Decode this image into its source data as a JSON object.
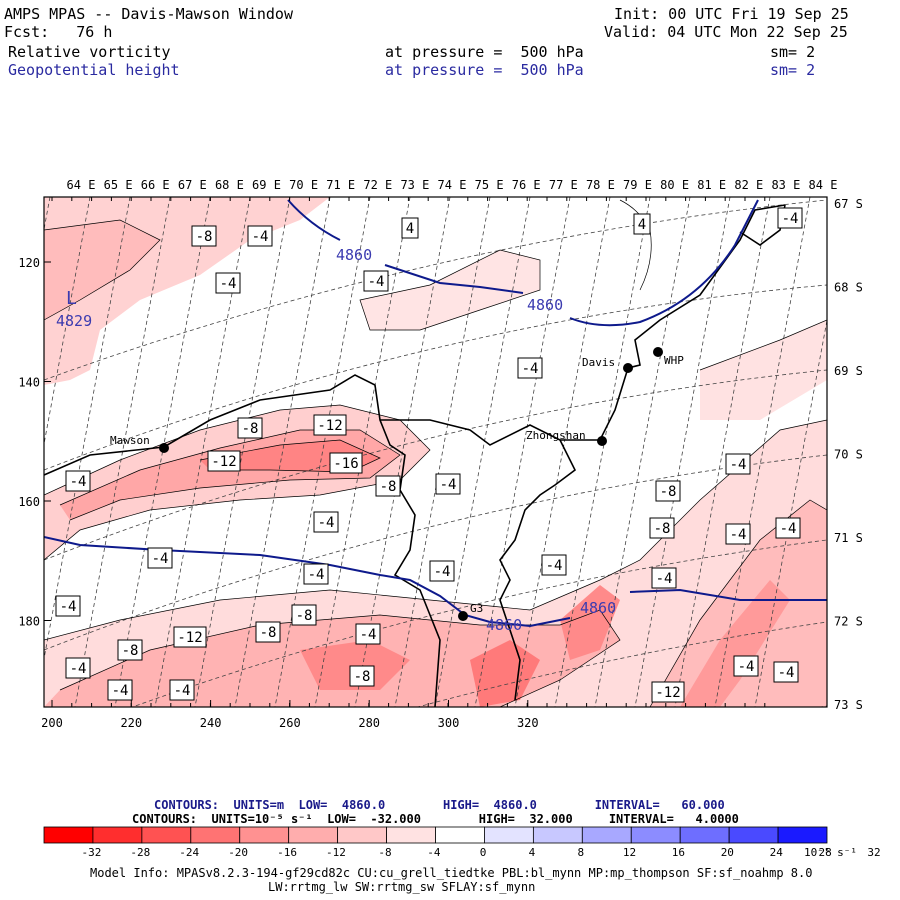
{
  "header": {
    "title": "AMPS MPAS -- Davis-Mawson Window",
    "init": "Init: 00 UTC Fri 19 Sep 25",
    "fcst": "Fcst:   76 h",
    "valid": "Valid: 04 UTC Mon 22 Sep 25",
    "field1": {
      "name": "Relative vorticity",
      "level": "at pressure =  500 hPa",
      "sm": "sm= 2"
    },
    "field2": {
      "name": "Geopotential height",
      "level": "at pressure =  500 hPa",
      "sm": "sm= 2"
    }
  },
  "axes": {
    "lon_labels": [
      "64 E",
      "65 E",
      "66 E",
      "67 E",
      "68 E",
      "69 E",
      "70 E",
      "71 E",
      "72 E",
      "73 E",
      "74 E",
      "75 E",
      "76 E",
      "77 E",
      "78 E",
      "79 E",
      "80 E",
      "81 E",
      "82 E",
      "83 E",
      "84 E"
    ],
    "lat_labels": [
      "67 S",
      "68 S",
      "69 S",
      "70 S",
      "71 S",
      "72 S",
      "73 S"
    ],
    "x_ticks": [
      "200",
      "220",
      "240",
      "260",
      "280",
      "300",
      "320"
    ],
    "y_ticks": [
      "120",
      "140",
      "160",
      "180"
    ]
  },
  "stations": [
    {
      "name": "Mawson"
    },
    {
      "name": "Davis"
    },
    {
      "name": "WHP"
    },
    {
      "name": "Zhongshan"
    },
    {
      "name": "G3"
    }
  ],
  "height_labels": [
    "4860",
    "4860",
    "4860",
    "4860",
    "4829"
  ],
  "low_marker": "L",
  "vort_labels": [
    "-8",
    "-4",
    "-4",
    "4",
    "4",
    "-4",
    "-4",
    "-4",
    "-8",
    "-12",
    "-12",
    "-16",
    "-8",
    "-4",
    "-4",
    "-4",
    "-4",
    "-4",
    "-4",
    "-4",
    "-4",
    "-4",
    "-8",
    "-4",
    "-4",
    "-8",
    "-12",
    "-8",
    "-4",
    "-8",
    "-4",
    "-4",
    "-4",
    "-4",
    "-8",
    "-8",
    "-4",
    "-4",
    "-12"
  ],
  "footer": {
    "contours1": "CONTOURS:  UNITS=m  LOW=  4860.0        HIGH=  4860.0        INTERVAL=   60.000",
    "contours2": "CONTOURS:  UNITS=10⁻⁵ s⁻¹  LOW=  -32.000        HIGH=  32.000     INTERVAL=   4.0000",
    "model_info": "Model Info: MPASv8.2.3-194-gf29cd82c CU:cu_grell_tiedtke PBL:bl_mynn MP:mp_thompson SF:sf_noahmp 8.0",
    "model_info2": "LW:rrtmg_lw SW:rrtmg_sw SFLAY:sf_mynn"
  },
  "colorbar": {
    "ticks": [
      "-32",
      "-28",
      "-24",
      "-20",
      "-16",
      "-12",
      "-8",
      "-4",
      "0",
      "4",
      "8",
      "12",
      "16",
      "20",
      "24",
      "28",
      "32"
    ],
    "units": "10⁻⁵ s⁻¹",
    "colors": [
      "#ff0000",
      "#ff2e2e",
      "#ff5252",
      "#ff7373",
      "#ff9191",
      "#ffadad",
      "#ffc8c8",
      "#ffe2e2",
      "#ffffff",
      "#ffffff",
      "#e3e3ff",
      "#c8c8ff",
      "#a8a8ff",
      "#8c8cff",
      "#6e6eff",
      "#4a4aff",
      "#1a1aff"
    ]
  }
}
